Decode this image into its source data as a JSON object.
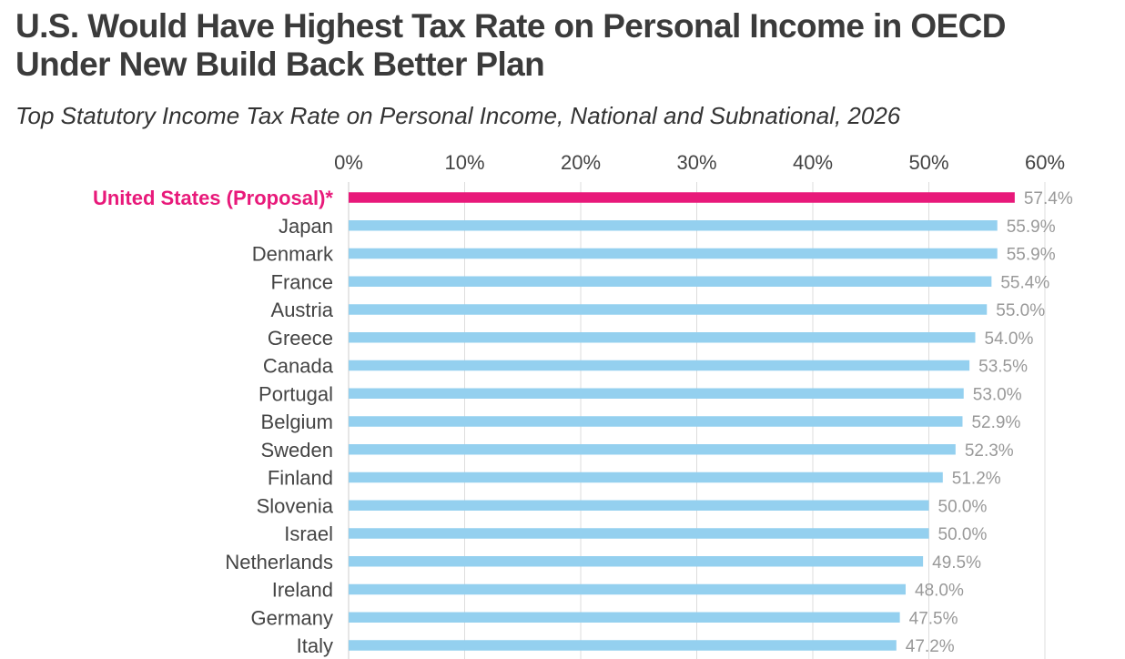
{
  "header": {
    "title": "U.S. Would Have Highest Tax Rate on Personal Income in OECD Under New Build Back Better Plan",
    "subtitle": "Top Statutory Income Tax Rate on Personal Income, National and Subnational, 2026"
  },
  "colors": {
    "highlight": "#e8197a",
    "bar": "#94d0ef",
    "label": "#444444",
    "value_label": "#999999",
    "axis_tick": "#444444",
    "grid": "#dddddd"
  },
  "chart_data": {
    "type": "bar",
    "orientation": "horizontal",
    "title": "U.S. Would Have Highest Tax Rate on Personal Income in OECD Under New Build Back Better Plan",
    "subtitle": "Top Statutory Income Tax Rate on Personal Income, National and Subnational, 2026",
    "xlim": [
      0,
      60
    ],
    "x_ticks": [
      0,
      10,
      20,
      30,
      40,
      50,
      60
    ],
    "x_tick_labels": [
      "0%",
      "10%",
      "20%",
      "30%",
      "40%",
      "50%",
      "60%"
    ],
    "x_axis_position": "top",
    "grid": true,
    "highlight_category": "United States (Proposal)*",
    "categories": [
      "United States (Proposal)*",
      "Japan",
      "Denmark",
      "France",
      "Austria",
      "Greece",
      "Canada",
      "Portugal",
      "Belgium",
      "Sweden",
      "Finland",
      "Slovenia",
      "Israel",
      "Netherlands",
      "Ireland",
      "Germany",
      "Italy"
    ],
    "values": [
      57.4,
      55.9,
      55.9,
      55.4,
      55.0,
      54.0,
      53.5,
      53.0,
      52.9,
      52.3,
      51.2,
      50.0,
      50.0,
      49.5,
      48.0,
      47.5,
      47.2
    ],
    "value_labels": [
      "57.4%",
      "55.9%",
      "55.9%",
      "55.4%",
      "55.0%",
      "54.0%",
      "53.5%",
      "53.0%",
      "52.9%",
      "52.3%",
      "51.2%",
      "50.0%",
      "50.0%",
      "49.5%",
      "48.0%",
      "47.5%",
      "47.2%"
    ]
  }
}
